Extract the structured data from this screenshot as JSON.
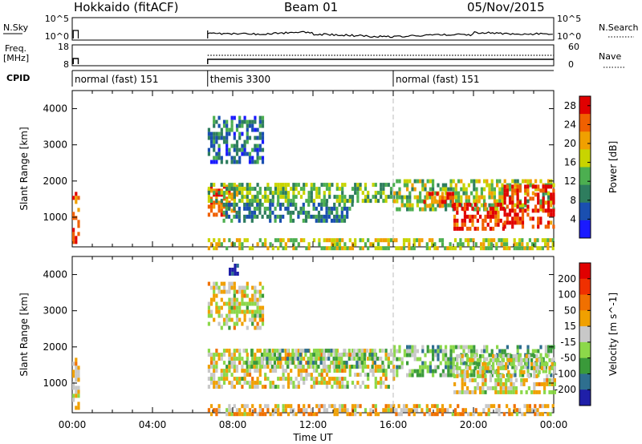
{
  "header": {
    "title": "Hokkaido (fitACF)",
    "beam": "Beam 01",
    "date": "05/Nov/2015"
  },
  "top_panels": {
    "nsky_label": "N.Sky",
    "nsky_ticks": [
      "10^5",
      "10^0"
    ],
    "nsearch_label": "N.Search",
    "freq_label": "Freq.",
    "freq_unit": "[MHz]",
    "freq_ticks": [
      "18",
      "8"
    ],
    "nave_label": "Nave",
    "nave_ticks": [
      "60",
      "0"
    ],
    "cpid_label": "CPID",
    "cpid_modes": [
      {
        "label": "normal (fast) 151",
        "start_hour": 0.0
      },
      {
        "label": "themis 3300",
        "start_hour": 6.75
      },
      {
        "label": "normal (fast) 151",
        "start_hour": 16.0
      }
    ]
  },
  "colors": {
    "power": [
      "#1a1aff",
      "#1a4fb0",
      "#2e7d5e",
      "#4caf50",
      "#c8d400",
      "#f0a000",
      "#f06000",
      "#e00000"
    ],
    "velocity": [
      "#1f1fa8",
      "#2e6f8f",
      "#3a9a3a",
      "#8cd84a",
      "#c8c8c8",
      "#f0a000",
      "#f07000",
      "#f03000",
      "#e00000"
    ]
  },
  "chart_data": [
    {
      "type": "heatmap",
      "title": "",
      "xlabel": "",
      "ylabel": "Slant Range [km]",
      "xlim": [
        0,
        24
      ],
      "ylim": [
        180,
        4500
      ],
      "x_ticks": [
        "00:00",
        "04:00",
        "08:00",
        "12:00",
        "16:00",
        "20:00",
        "00:00"
      ],
      "y_ticks": [
        "1000",
        "2000",
        "3000",
        "4000"
      ],
      "colorbar": {
        "label": "Power [dB]",
        "ticks": [
          "4",
          "8",
          "12",
          "16",
          "20",
          "24",
          "28"
        ],
        "range": [
          0,
          30
        ]
      },
      "regions": [
        {
          "x": [
            0.0,
            0.3
          ],
          "y": [
            300,
            1700
          ],
          "level": 0.85
        },
        {
          "x": [
            6.75,
            8.2
          ],
          "y": [
            1050,
            1900
          ],
          "level": 0.85
        },
        {
          "x": [
            6.75,
            16.0
          ],
          "y": [
            1400,
            1950
          ],
          "level": 0.45
        },
        {
          "x": [
            6.75,
            9.5
          ],
          "y": [
            2500,
            3800
          ],
          "level": 0.25
        },
        {
          "x": [
            7.5,
            14.0
          ],
          "y": [
            850,
            1400
          ],
          "level": 0.3
        },
        {
          "x": [
            16.0,
            24.0
          ],
          "y": [
            1250,
            2050
          ],
          "level": 0.5
        },
        {
          "x": [
            17.5,
            19.0
          ],
          "y": [
            1300,
            1700
          ],
          "level": 0.8
        },
        {
          "x": [
            19.0,
            21.5
          ],
          "y": [
            700,
            1400
          ],
          "level": 0.9
        },
        {
          "x": [
            21.5,
            24.0
          ],
          "y": [
            750,
            1900
          ],
          "level": 0.92
        },
        {
          "x": [
            6.75,
            24.0
          ],
          "y": [
            180,
            420
          ],
          "level": 0.55
        }
      ]
    },
    {
      "type": "heatmap",
      "title": "",
      "xlabel": "Time UT",
      "ylabel": "Slant Range [km]",
      "xlim": [
        0,
        24
      ],
      "ylim": [
        180,
        4500
      ],
      "x_ticks": [
        "00:00",
        "04:00",
        "08:00",
        "12:00",
        "16:00",
        "20:00",
        "00:00"
      ],
      "y_ticks": [
        "1000",
        "2000",
        "3000",
        "4000"
      ],
      "colorbar": {
        "label": "Velocity [m s^-1]",
        "ticks": [
          "200",
          "100",
          "50",
          "15",
          "-15",
          "-50",
          "-100",
          "-200"
        ],
        "range": [
          250,
          -250
        ]
      },
      "regions": [
        {
          "x": [
            0.0,
            0.3
          ],
          "y": [
            300,
            1700
          ],
          "level": 0.55
        },
        {
          "x": [
            6.75,
            16.0
          ],
          "y": [
            850,
            1950
          ],
          "level": 0.5
        },
        {
          "x": [
            6.75,
            9.5
          ],
          "y": [
            2500,
            3800
          ],
          "level": 0.5
        },
        {
          "x": [
            8.5,
            15.5
          ],
          "y": [
            1500,
            1950
          ],
          "level": 0.35
        },
        {
          "x": [
            16.0,
            24.0
          ],
          "y": [
            1250,
            2050
          ],
          "level": 0.35
        },
        {
          "x": [
            19.0,
            24.0
          ],
          "y": [
            700,
            1800
          ],
          "level": 0.5
        },
        {
          "x": [
            6.75,
            24.0
          ],
          "y": [
            180,
            420
          ],
          "level": 0.6
        },
        {
          "x": [
            7.8,
            8.2
          ],
          "y": [
            4000,
            4300
          ],
          "level": 0.05
        }
      ]
    }
  ]
}
